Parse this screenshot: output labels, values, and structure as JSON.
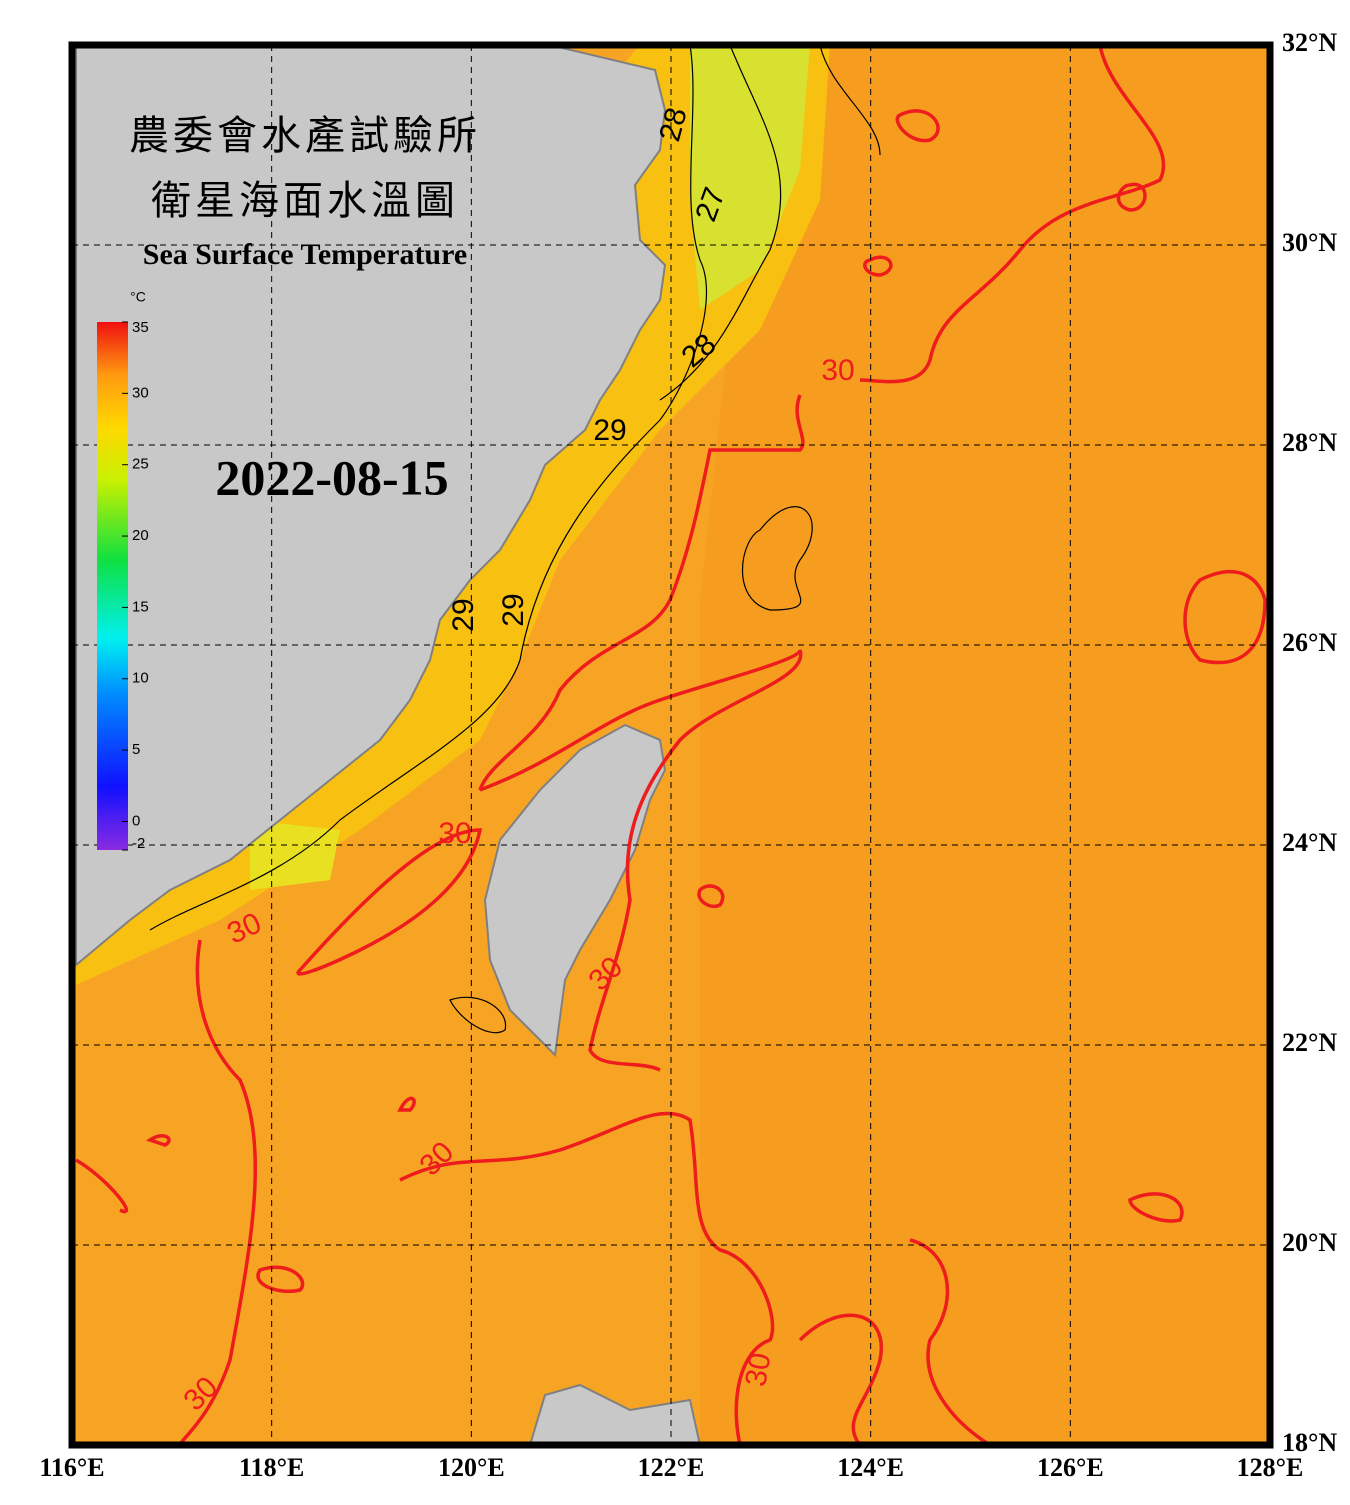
{
  "title": {
    "line1": "農委會水產試驗所",
    "line2": "衛星海面水溫圖",
    "line3": "Sea Surface Temperature"
  },
  "date": "2022-08-15",
  "colorbar": {
    "unit": "°C",
    "range": [
      -2,
      35
    ],
    "ticks": [
      35,
      30,
      25,
      20,
      15,
      10,
      5,
      0,
      -2
    ]
  },
  "map": {
    "lon_range": [
      116,
      128
    ],
    "lat_range": [
      18,
      32
    ],
    "lon_ticks": [
      {
        "value": 116,
        "label": "116°E"
      },
      {
        "value": 118,
        "label": "118°E"
      },
      {
        "value": 120,
        "label": "120°E"
      },
      {
        "value": 122,
        "label": "122°E"
      },
      {
        "value": 124,
        "label": "124°E"
      },
      {
        "value": 126,
        "label": "126°E"
      },
      {
        "value": 128,
        "label": "128°E"
      }
    ],
    "lat_ticks": [
      {
        "value": 32,
        "label": "32°N"
      },
      {
        "value": 30,
        "label": "30°N"
      },
      {
        "value": 28,
        "label": "28°N"
      },
      {
        "value": 26,
        "label": "26°N"
      },
      {
        "value": 24,
        "label": "24°N"
      },
      {
        "value": 22,
        "label": "22°N"
      },
      {
        "value": 20,
        "label": "20°N"
      },
      {
        "value": 18,
        "label": "18°N"
      }
    ],
    "contour_labels": [
      28,
      27,
      28,
      30,
      29,
      29,
      29,
      30,
      30,
      30,
      30,
      30,
      30
    ]
  }
}
